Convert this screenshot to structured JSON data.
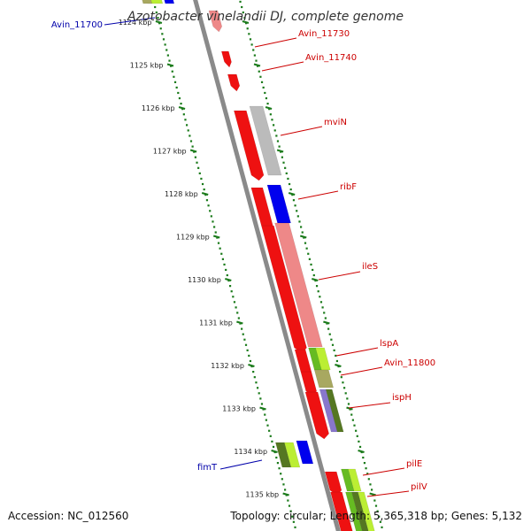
{
  "title": "Azotobacter vinelandii DJ, complete genome",
  "footer": {
    "accession": "Accession: NC_012560",
    "summary": "Topology: circular; Length: 5,365,318 bp; Genes: 5,132"
  },
  "colors": {
    "backbone": "#8a8a8a",
    "tick": "#1a7a1a",
    "label_red": "#cc0000",
    "label_blue": "#0000aa",
    "gene_red": "#ee1111",
    "gene_blue": "#0000ee",
    "gene_grey": "#bbbbbb",
    "gene_pink": "#ee8888",
    "gene_olive": "#a8a860",
    "gene_green": "#66bb22",
    "gene_lime": "#bbee33",
    "gene_purple": "#8877cc",
    "gene_dkgreen": "#557722"
  },
  "kbp_labels": [
    {
      "kbp": 1124,
      "text": "1124 kbp"
    },
    {
      "kbp": 1125,
      "text": "1125 kbp"
    },
    {
      "kbp": 1126,
      "text": "1126 kbp"
    },
    {
      "kbp": 1127,
      "text": "1127 kbp"
    },
    {
      "kbp": 1128,
      "text": "1128 kbp"
    },
    {
      "kbp": 1129,
      "text": "1129 kbp"
    },
    {
      "kbp": 1130,
      "text": "1130 kbp"
    },
    {
      "kbp": 1131,
      "text": "1131 kbp"
    },
    {
      "kbp": 1132,
      "text": "1132 kbp"
    },
    {
      "kbp": 1133,
      "text": "1133 kbp"
    },
    {
      "kbp": 1134,
      "text": "1134 kbp"
    },
    {
      "kbp": 1135,
      "text": "1135 kbp"
    }
  ],
  "gene_labels": [
    {
      "name": "Avin_11700",
      "color": "blue"
    },
    {
      "name": "Avin_11730",
      "color": "red"
    },
    {
      "name": "Avin_11740",
      "color": "red"
    },
    {
      "name": "mviN",
      "color": "red"
    },
    {
      "name": "ribF",
      "color": "red"
    },
    {
      "name": "ileS",
      "color": "red"
    },
    {
      "name": "lspA",
      "color": "red"
    },
    {
      "name": "Avin_11800",
      "color": "red"
    },
    {
      "name": "ispH",
      "color": "red"
    },
    {
      "name": "fimT",
      "color": "blue"
    },
    {
      "name": "pilE",
      "color": "red"
    },
    {
      "name": "pilV",
      "color": "red"
    }
  ]
}
